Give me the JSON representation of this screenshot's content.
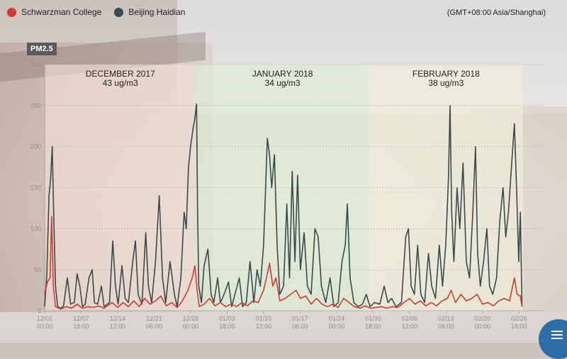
{
  "legend": {
    "items": [
      {
        "label": "Schwarzman College",
        "color": "#d23b35"
      },
      {
        "label": "Beijing Haidian",
        "color": "#3a4a4f"
      }
    ]
  },
  "timezone": "(GMT+08:00 Asia/Shanghai)",
  "y_badge": "PM2.5",
  "colors": {
    "dec_band": "#f3e3d8",
    "jan_band": "#dff0d6",
    "feb_band": "#f2f0dc",
    "grid": "#b0b0b0"
  },
  "chart_data": {
    "type": "line",
    "ylim": [
      0,
      300
    ],
    "yticks": [
      0,
      50,
      100,
      150,
      200,
      250,
      300
    ],
    "x_ticks": [
      {
        "date": "12/01",
        "time": "00:00",
        "day": 0
      },
      {
        "date": "12/07",
        "time": "18:00",
        "day": 6.75
      },
      {
        "date": "12/14",
        "time": "12:00",
        "day": 13.5
      },
      {
        "date": "12/21",
        "time": "06:00",
        "day": 20.25
      },
      {
        "date": "12/28",
        "time": "00:00",
        "day": 27
      },
      {
        "date": "01/03",
        "time": "18:00",
        "day": 33.75
      },
      {
        "date": "01/10",
        "time": "12:00",
        "day": 40.5
      },
      {
        "date": "01/17",
        "time": "06:00",
        "day": 47.25
      },
      {
        "date": "01/24",
        "time": "00:00",
        "day": 54
      },
      {
        "date": "01/30",
        "time": "18:00",
        "day": 60.75
      },
      {
        "date": "02/06",
        "time": "12:00",
        "day": 67.5
      },
      {
        "date": "02/13",
        "time": "06:00",
        "day": 74.25
      },
      {
        "date": "02/20",
        "time": "00:00",
        "day": 81
      },
      {
        "date": "02/26",
        "time": "18:00",
        "day": 87.75
      }
    ],
    "x_range_days": [
      0,
      88.5
    ],
    "months": [
      {
        "name": "DECEMBER 2017",
        "avg": "43 ug/m3",
        "start_day": 0,
        "end_day": 28
      },
      {
        "name": "JANUARY 2018",
        "avg": "34 ug/m3",
        "start_day": 28,
        "end_day": 60
      },
      {
        "name": "FEBRUARY 2018",
        "avg": "38 ug/m3",
        "start_day": 60,
        "end_day": 88.5
      }
    ],
    "series": [
      {
        "name": "Beijing Haidian",
        "color": "#3a4a4f",
        "points": [
          [
            0.0,
            5
          ],
          [
            0.4,
            45
          ],
          [
            0.8,
            140
          ],
          [
            1.1,
            160
          ],
          [
            1.4,
            200
          ],
          [
            1.7,
            110
          ],
          [
            2.0,
            30
          ],
          [
            2.4,
            5
          ],
          [
            3.0,
            3
          ],
          [
            3.5,
            6
          ],
          [
            4.2,
            40
          ],
          [
            4.8,
            8
          ],
          [
            5.5,
            10
          ],
          [
            6.0,
            45
          ],
          [
            6.5,
            30
          ],
          [
            7.0,
            5
          ],
          [
            7.5,
            8
          ],
          [
            8.2,
            40
          ],
          [
            8.8,
            50
          ],
          [
            9.2,
            10
          ],
          [
            9.8,
            8
          ],
          [
            10.5,
            30
          ],
          [
            11.0,
            5
          ],
          [
            12.0,
            10
          ],
          [
            12.6,
            85
          ],
          [
            13.1,
            30
          ],
          [
            13.6,
            8
          ],
          [
            14.3,
            55
          ],
          [
            14.9,
            15
          ],
          [
            15.5,
            10
          ],
          [
            16.3,
            60
          ],
          [
            16.8,
            85
          ],
          [
            17.3,
            20
          ],
          [
            18.0,
            8
          ],
          [
            18.7,
            95
          ],
          [
            19.2,
            30
          ],
          [
            19.8,
            10
          ],
          [
            20.5,
            60
          ],
          [
            21.2,
            140
          ],
          [
            21.8,
            40
          ],
          [
            22.4,
            10
          ],
          [
            23.2,
            60
          ],
          [
            24.0,
            20
          ],
          [
            24.5,
            5
          ],
          [
            25.2,
            40
          ],
          [
            25.8,
            120
          ],
          [
            26.2,
            100
          ],
          [
            26.6,
            175
          ],
          [
            27.0,
            200
          ],
          [
            27.4,
            220
          ],
          [
            27.8,
            235
          ],
          [
            28.1,
            252
          ],
          [
            28.3,
            120
          ],
          [
            28.5,
            30
          ],
          [
            29.0,
            10
          ],
          [
            29.5,
            55
          ],
          [
            30.2,
            75
          ],
          [
            30.8,
            20
          ],
          [
            31.3,
            10
          ],
          [
            32.0,
            40
          ],
          [
            32.5,
            10
          ],
          [
            33.2,
            20
          ],
          [
            34.0,
            35
          ],
          [
            34.6,
            5
          ],
          [
            35.2,
            20
          ],
          [
            36.0,
            40
          ],
          [
            36.6,
            5
          ],
          [
            37.3,
            10
          ],
          [
            38.0,
            60
          ],
          [
            38.7,
            10
          ],
          [
            39.3,
            50
          ],
          [
            39.9,
            30
          ],
          [
            40.5,
            80
          ],
          [
            41.2,
            210
          ],
          [
            41.6,
            190
          ],
          [
            42.0,
            150
          ],
          [
            42.5,
            190
          ],
          [
            43.0,
            80
          ],
          [
            43.5,
            20
          ],
          [
            44.2,
            30
          ],
          [
            44.8,
            130
          ],
          [
            45.3,
            40
          ],
          [
            45.8,
            170
          ],
          [
            46.3,
            60
          ],
          [
            46.8,
            165
          ],
          [
            47.3,
            50
          ],
          [
            48.0,
            95
          ],
          [
            48.6,
            30
          ],
          [
            49.3,
            20
          ],
          [
            50.0,
            100
          ],
          [
            50.6,
            90
          ],
          [
            51.2,
            30
          ],
          [
            52.0,
            10
          ],
          [
            52.8,
            40
          ],
          [
            53.5,
            5
          ],
          [
            54.3,
            10
          ],
          [
            55.0,
            60
          ],
          [
            55.6,
            80
          ],
          [
            56.0,
            130
          ],
          [
            56.5,
            40
          ],
          [
            57.2,
            10
          ],
          [
            58.0,
            5
          ],
          [
            58.8,
            8
          ],
          [
            59.5,
            20
          ],
          [
            60.2,
            5
          ],
          [
            61.0,
            10
          ],
          [
            62.0,
            8
          ],
          [
            62.8,
            30
          ],
          [
            63.5,
            10
          ],
          [
            64.2,
            15
          ],
          [
            65.0,
            5
          ],
          [
            66.0,
            10
          ],
          [
            66.8,
            90
          ],
          [
            67.3,
            100
          ],
          [
            67.8,
            30
          ],
          [
            68.4,
            20
          ],
          [
            69.0,
            80
          ],
          [
            69.6,
            20
          ],
          [
            70.3,
            10
          ],
          [
            71.0,
            70
          ],
          [
            71.6,
            30
          ],
          [
            72.3,
            15
          ],
          [
            73.0,
            80
          ],
          [
            73.6,
            30
          ],
          [
            74.2,
            80
          ],
          [
            74.7,
            160
          ],
          [
            75.0,
            250
          ],
          [
            75.3,
            120
          ],
          [
            75.7,
            60
          ],
          [
            76.3,
            150
          ],
          [
            76.8,
            100
          ],
          [
            77.4,
            180
          ],
          [
            78.0,
            60
          ],
          [
            78.6,
            40
          ],
          [
            79.2,
            120
          ],
          [
            79.7,
            200
          ],
          [
            80.1,
            70
          ],
          [
            80.6,
            30
          ],
          [
            81.2,
            60
          ],
          [
            81.8,
            100
          ],
          [
            82.3,
            30
          ],
          [
            82.9,
            20
          ],
          [
            83.6,
            40
          ],
          [
            84.2,
            110
          ],
          [
            84.8,
            150
          ],
          [
            85.3,
            90
          ],
          [
            85.8,
            120
          ],
          [
            86.4,
            180
          ],
          [
            86.9,
            228
          ],
          [
            87.3,
            150
          ],
          [
            87.7,
            60
          ],
          [
            88.0,
            120
          ],
          [
            88.3,
            5
          ]
        ]
      },
      {
        "name": "Schwarzman College",
        "color": "#d23b35",
        "points": [
          [
            0.0,
            20
          ],
          [
            0.5,
            35
          ],
          [
            1.0,
            40
          ],
          [
            1.3,
            115
          ],
          [
            1.6,
            30
          ],
          [
            2.0,
            5
          ],
          [
            3.0,
            2
          ],
          [
            4.0,
            5
          ],
          [
            5.0,
            3
          ],
          [
            6.0,
            8
          ],
          [
            7.0,
            3
          ],
          [
            8.0,
            5
          ],
          [
            9.0,
            4
          ],
          [
            10.0,
            6
          ],
          [
            11.0,
            3
          ],
          [
            12.5,
            10
          ],
          [
            13.5,
            4
          ],
          [
            14.5,
            10
          ],
          [
            15.5,
            5
          ],
          [
            16.5,
            12
          ],
          [
            17.5,
            5
          ],
          [
            18.5,
            15
          ],
          [
            19.5,
            8
          ],
          [
            20.5,
            12
          ],
          [
            21.5,
            18
          ],
          [
            22.5,
            6
          ],
          [
            23.5,
            10
          ],
          [
            24.5,
            4
          ],
          [
            25.5,
            12
          ],
          [
            26.5,
            25
          ],
          [
            27.3,
            40
          ],
          [
            27.8,
            55
          ],
          [
            28.2,
            25
          ],
          [
            28.6,
            5
          ],
          [
            29.5,
            8
          ],
          [
            30.5,
            15
          ],
          [
            31.5,
            6
          ],
          [
            32.5,
            10
          ],
          [
            33.5,
            5
          ],
          [
            34.5,
            8
          ],
          [
            35.5,
            5
          ],
          [
            36.5,
            10
          ],
          [
            37.5,
            6
          ],
          [
            38.5,
            12
          ],
          [
            39.5,
            10
          ],
          [
            40.5,
            25
          ],
          [
            41.2,
            45
          ],
          [
            41.6,
            58
          ],
          [
            42.2,
            30
          ],
          [
            42.8,
            40
          ],
          [
            43.5,
            12
          ],
          [
            44.5,
            15
          ],
          [
            45.5,
            20
          ],
          [
            46.5,
            25
          ],
          [
            47.3,
            15
          ],
          [
            48.3,
            18
          ],
          [
            49.3,
            8
          ],
          [
            50.3,
            15
          ],
          [
            51.3,
            8
          ],
          [
            52.3,
            5
          ],
          [
            53.3,
            8
          ],
          [
            54.3,
            4
          ],
          [
            55.3,
            15
          ],
          [
            56.3,
            10
          ],
          [
            57.3,
            5
          ],
          [
            58.3,
            3
          ],
          [
            59.3,
            6
          ],
          [
            60.3,
            3
          ],
          [
            61.3,
            4
          ],
          [
            62.3,
            5
          ],
          [
            63.3,
            3
          ],
          [
            64.3,
            5
          ],
          [
            65.3,
            4
          ],
          [
            66.5,
            10
          ],
          [
            67.5,
            15
          ],
          [
            68.5,
            8
          ],
          [
            69.5,
            12
          ],
          [
            70.5,
            6
          ],
          [
            71.5,
            10
          ],
          [
            72.5,
            6
          ],
          [
            73.5,
            12
          ],
          [
            74.5,
            15
          ],
          [
            75.2,
            25
          ],
          [
            76.0,
            10
          ],
          [
            77.0,
            20
          ],
          [
            78.0,
            12
          ],
          [
            79.0,
            15
          ],
          [
            80.0,
            20
          ],
          [
            81.0,
            8
          ],
          [
            82.0,
            10
          ],
          [
            83.0,
            6
          ],
          [
            84.0,
            12
          ],
          [
            85.0,
            15
          ],
          [
            86.0,
            12
          ],
          [
            86.9,
            40
          ],
          [
            87.4,
            20
          ],
          [
            88.0,
            18
          ],
          [
            88.3,
            5
          ]
        ]
      }
    ]
  }
}
